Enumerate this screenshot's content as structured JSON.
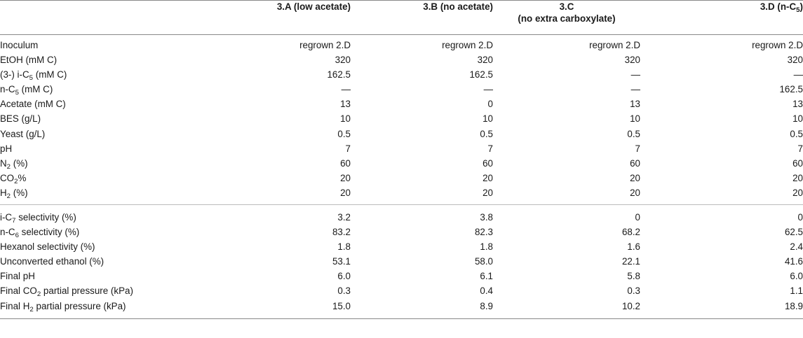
{
  "header": {
    "col0": "",
    "col1": {
      "code": "3.A",
      "desc": "(low acetate)"
    },
    "col2": {
      "code": "3.B",
      "desc": "(no acetate)"
    },
    "col3": {
      "code": "3.C",
      "desc": "(no extra carboxylate)"
    },
    "col4": {
      "pre": "3.D (n-C",
      "sub": "5",
      "post": ")"
    }
  },
  "conditions": [
    {
      "label": {
        "pre": "Inoculum",
        "sub": "",
        "post": ""
      },
      "values": [
        "regrown 2.D",
        "regrown 2.D",
        "regrown 2.D",
        "regrown 2.D"
      ]
    },
    {
      "label": {
        "pre": "EtOH (mM C)",
        "sub": "",
        "post": ""
      },
      "values": [
        "320",
        "320",
        "320",
        "320"
      ]
    },
    {
      "label": {
        "pre": "(3-) i-C",
        "sub": "5",
        "post": " (mM C)"
      },
      "values": [
        "162.5",
        "162.5",
        "—",
        "—"
      ]
    },
    {
      "label": {
        "pre": "n-C",
        "sub": "5",
        "post": " (mM C)"
      },
      "values": [
        "—",
        "—",
        "—",
        "162.5"
      ]
    },
    {
      "label": {
        "pre": "Acetate (mM C)",
        "sub": "",
        "post": ""
      },
      "values": [
        "13",
        "0",
        "13",
        "13"
      ]
    },
    {
      "label": {
        "pre": "BES (g/L)",
        "sub": "",
        "post": ""
      },
      "values": [
        "10",
        "10",
        "10",
        "10"
      ]
    },
    {
      "label": {
        "pre": "Yeast (g/L)",
        "sub": "",
        "post": ""
      },
      "values": [
        "0.5",
        "0.5",
        "0.5",
        "0.5"
      ]
    },
    {
      "label": {
        "pre": "pH",
        "sub": "",
        "post": ""
      },
      "values": [
        "7",
        "7",
        "7",
        "7"
      ]
    },
    {
      "label": {
        "pre": "N",
        "sub": "2",
        "post": " (%)"
      },
      "values": [
        "60",
        "60",
        "60",
        "60"
      ]
    },
    {
      "label": {
        "pre": "CO",
        "sub": "2",
        "post": "%"
      },
      "values": [
        "20",
        "20",
        "20",
        "20"
      ]
    },
    {
      "label": {
        "pre": "H",
        "sub": "2",
        "post": " (%)"
      },
      "values": [
        "20",
        "20",
        "20",
        "20"
      ]
    }
  ],
  "results": [
    {
      "label": {
        "pre": "i-C",
        "sub": "7",
        "post": " selectivity (%)"
      },
      "values": [
        "3.2",
        "3.8",
        "0",
        "0"
      ]
    },
    {
      "label": {
        "pre": "n-C",
        "sub": "6",
        "post": " selectivity (%)"
      },
      "values": [
        "83.2",
        "82.3",
        "68.2",
        "62.5"
      ]
    },
    {
      "label": {
        "pre": "Hexanol selectivity (%)",
        "sub": "",
        "post": ""
      },
      "values": [
        "1.8",
        "1.8",
        "1.6",
        "2.4"
      ]
    },
    {
      "label": {
        "pre": "Unconverted ethanol (%)",
        "sub": "",
        "post": ""
      },
      "values": [
        "53.1",
        "58.0",
        "22.1",
        "41.6"
      ]
    },
    {
      "label": {
        "pre": "Final pH",
        "sub": "",
        "post": ""
      },
      "values": [
        "6.0",
        "6.1",
        "5.8",
        "6.0"
      ]
    },
    {
      "label": {
        "pre": "Final CO",
        "sub": "2",
        "post": " partial pressure (kPa)"
      },
      "values": [
        "0.3",
        "0.4",
        "0.3",
        "1.1"
      ]
    },
    {
      "label": {
        "pre": "Final H",
        "sub": "2",
        "post": " partial pressure (kPa)"
      },
      "values": [
        "15.0",
        "8.9",
        "10.2",
        "18.9"
      ]
    }
  ]
}
